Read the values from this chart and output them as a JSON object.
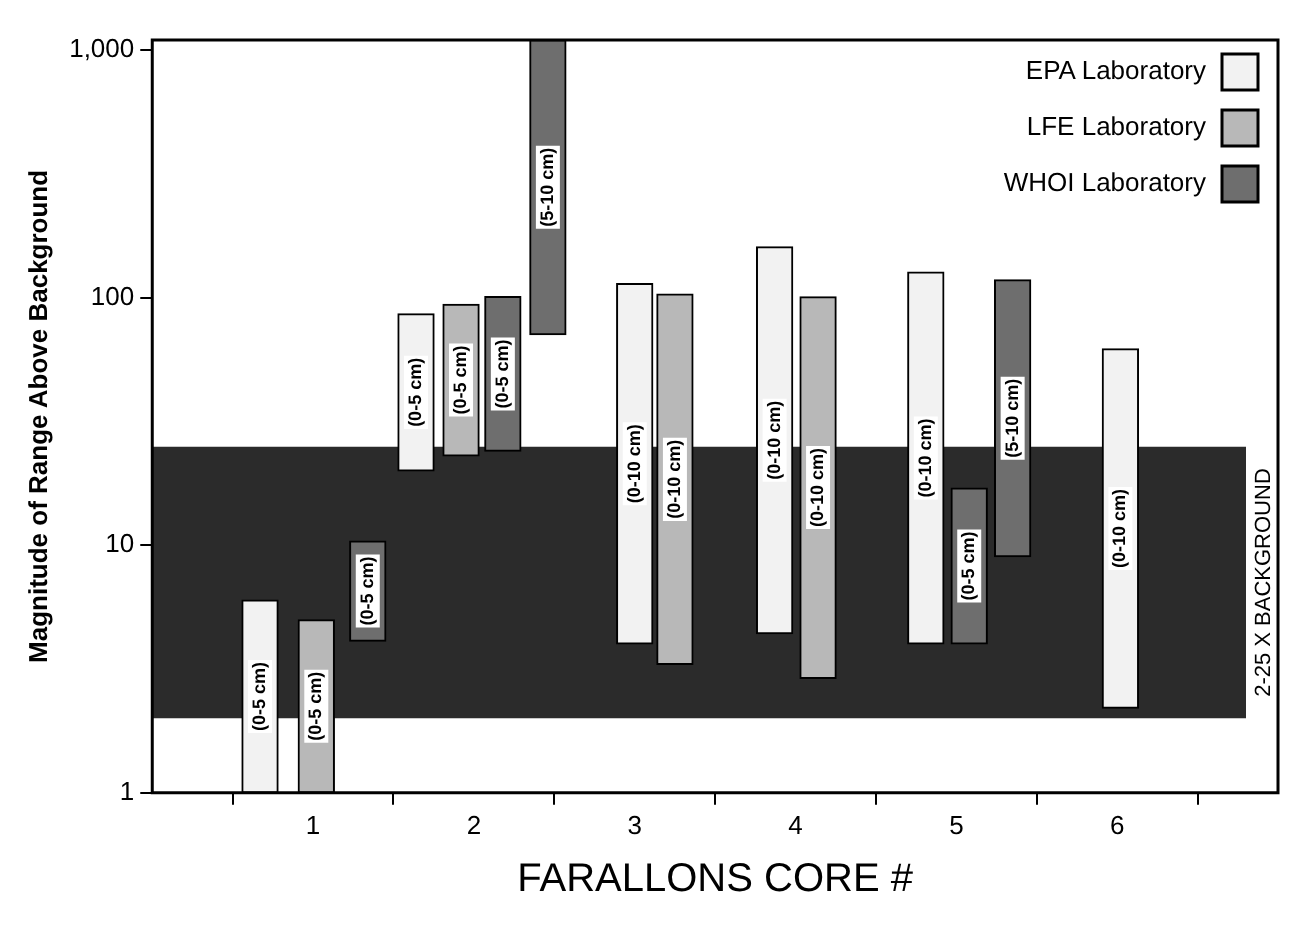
{
  "chart_data": {
    "type": "bar",
    "xlabel": "FARALLONS CORE #",
    "ylabel": "Magnitude of Range Above Background",
    "log": "y",
    "xlim": [
      0,
      7
    ],
    "xticks": [
      1,
      2,
      3,
      4,
      5,
      6
    ],
    "ylim": [
      1,
      1100
    ],
    "yticks": [
      1,
      10,
      100,
      {
        "value": 1000,
        "label": "1,000"
      }
    ],
    "legend": "top right",
    "grid": false,
    "bands": [
      {
        "axis": "y",
        "from": 2,
        "to": 25,
        "label": "2-25 X BACKGROUND",
        "color": "#2b2b2b"
      }
    ],
    "series": [
      {
        "name": "EPA Laboratory",
        "color": "#f2f2f2",
        "x": [
          0.67,
          1.64,
          3.0,
          3.87,
          4.81,
          6.02
        ],
        "base": [
          1,
          20,
          4,
          4.4,
          4,
          2.2
        ],
        "values": [
          5,
          66,
          110,
          156,
          123,
          60
        ],
        "value_labels": [
          "(0-5 cm)",
          "(0-5 cm)",
          "(0-10 cm)",
          "(0-10 cm)",
          "(0-10 cm)",
          "(0-10 cm)"
        ]
      },
      {
        "name": "LFE Laboratory",
        "color": "#b8b8b8",
        "x": [
          1.02,
          1.92,
          3.25,
          4.14
        ],
        "base": [
          1,
          23,
          3.3,
          2.9
        ],
        "values": [
          4,
          71,
          100,
          98
        ],
        "value_labels": [
          "(0-5 cm)",
          "(0-5 cm)",
          "(0-10 cm)",
          "(0-10 cm)"
        ]
      },
      {
        "name": "WHOI Laboratory",
        "color": "#6e6e6e",
        "x": [
          1.34,
          2.18,
          2.46,
          5.08,
          5.35
        ],
        "base": [
          4.1,
          24,
          71,
          4,
          9
        ],
        "values": [
          6.3,
          77,
          1029,
          13,
          109
        ],
        "value_labels": [
          "(0-5 cm)",
          "(0-5 cm)",
          "(5-10 cm)",
          "(0-5 cm)",
          "(5-10 cm)"
        ]
      }
    ]
  }
}
